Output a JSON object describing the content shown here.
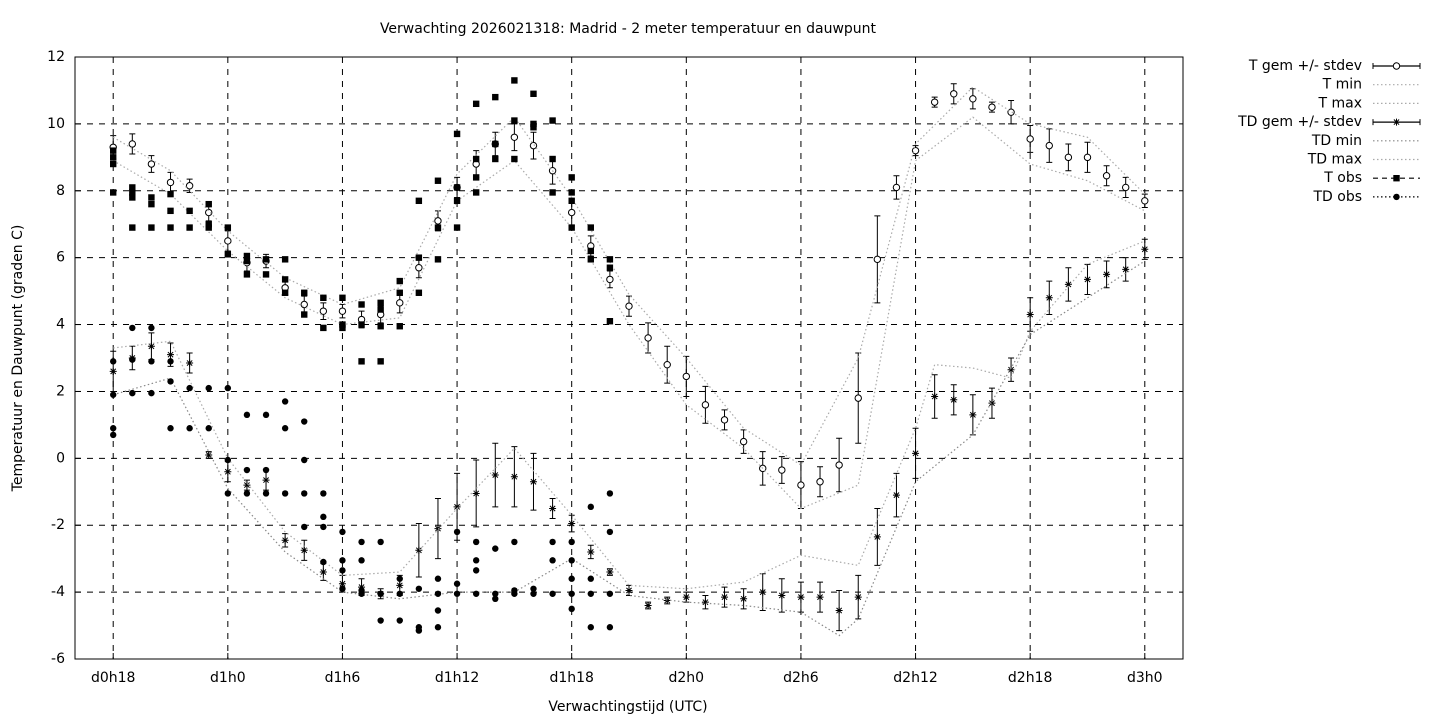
{
  "chart_data": {
    "type": "line",
    "title": "Verwachting 2026021318: Madrid - 2 meter temperatuur en dauwpunt",
    "xlabel": "Verwachtingstijd (UTC)",
    "ylabel": "Temperatuur en Dauwpunt (graden C)",
    "xlim": [
      16,
      74
    ],
    "xticks": [
      {
        "value": 18,
        "label": "d0h18"
      },
      {
        "value": 24,
        "label": "d1h0"
      },
      {
        "value": 30,
        "label": "d1h6"
      },
      {
        "value": 36,
        "label": "d1h12"
      },
      {
        "value": 42,
        "label": "d1h18"
      },
      {
        "value": 48,
        "label": "d2h0"
      },
      {
        "value": 54,
        "label": "d2h6"
      },
      {
        "value": 60,
        "label": "d2h12"
      },
      {
        "value": 66,
        "label": "d2h18"
      },
      {
        "value": 72,
        "label": "d3h0"
      }
    ],
    "ylim": [
      -6,
      12
    ],
    "yticks": [
      -6,
      -4,
      -2,
      0,
      2,
      4,
      6,
      8,
      10,
      12
    ],
    "grid": true,
    "legend": "outside-right",
    "series": [
      {
        "name": "T gem +/- stdev",
        "type": "errorbar",
        "marker": "open-circle",
        "line": "solid",
        "color": "#000000",
        "x": [
          18,
          19,
          20,
          21,
          22,
          23,
          24,
          25,
          26,
          27,
          28,
          29,
          30,
          31,
          32,
          33,
          34,
          35,
          36,
          37,
          38,
          39,
          40,
          41,
          42,
          43,
          44,
          45,
          46,
          47,
          48,
          49,
          50,
          51,
          52,
          53,
          54,
          55,
          56,
          57,
          58,
          59,
          60,
          61,
          62,
          63,
          64,
          65,
          66,
          67,
          68,
          69,
          70,
          71,
          72
        ],
        "values": [
          9.3,
          9.4,
          8.8,
          8.25,
          8.15,
          7.35,
          6.5,
          5.85,
          5.9,
          5.1,
          4.6,
          4.4,
          4.4,
          4.15,
          4.3,
          4.65,
          5.7,
          7.1,
          8.1,
          8.8,
          9.4,
          9.6,
          9.35,
          8.6,
          7.35,
          6.35,
          5.35,
          4.55,
          3.6,
          2.8,
          2.45,
          1.6,
          1.15,
          0.5,
          -0.3,
          -0.35,
          -0.8,
          -0.7,
          -0.2,
          1.8,
          5.95,
          8.1,
          9.2,
          10.65,
          10.9,
          10.75,
          10.5,
          10.35,
          9.55,
          9.35,
          9.0,
          9.0,
          8.45,
          8.1,
          7.7
        ],
        "errors": [
          0.35,
          0.3,
          0.25,
          0.3,
          0.2,
          0.25,
          0.3,
          0.25,
          0.2,
          0.2,
          0.25,
          0.25,
          0.2,
          0.25,
          0.25,
          0.3,
          0.3,
          0.3,
          0.3,
          0.4,
          0.35,
          0.4,
          0.4,
          0.4,
          0.4,
          0.3,
          0.25,
          0.3,
          0.45,
          0.55,
          0.6,
          0.55,
          0.3,
          0.35,
          0.5,
          0.4,
          0.7,
          0.45,
          0.8,
          1.35,
          1.3,
          0.35,
          0.15,
          0.15,
          0.3,
          0.3,
          0.15,
          0.35,
          0.4,
          0.5,
          0.4,
          0.45,
          0.3,
          0.3,
          0.2
        ]
      },
      {
        "name": "T min",
        "type": "line",
        "line": "dotted",
        "color": "#aaaaaa",
        "x": [
          18,
          21,
          24,
          27,
          30,
          33,
          36,
          39,
          42,
          45,
          48,
          51,
          54,
          57,
          60,
          63,
          66,
          69,
          72
        ],
        "values": [
          8.9,
          7.9,
          6.2,
          4.8,
          4.0,
          4.2,
          7.7,
          8.9,
          6.9,
          4.0,
          1.6,
          0.3,
          -1.5,
          -0.8,
          8.9,
          10.2,
          8.8,
          8.3,
          7.4
        ]
      },
      {
        "name": "T max",
        "type": "line",
        "line": "dotted",
        "color": "#aaaaaa",
        "x": [
          18,
          21,
          24,
          27,
          30,
          33,
          36,
          39,
          42,
          45,
          48,
          51,
          54,
          57,
          60,
          63,
          66,
          69,
          72
        ],
        "values": [
          9.6,
          8.6,
          6.8,
          5.4,
          4.6,
          5.1,
          8.5,
          10.2,
          7.8,
          4.9,
          3.0,
          0.9,
          -0.2,
          3.0,
          9.4,
          11.1,
          10.0,
          9.6,
          7.9
        ]
      },
      {
        "name": "TD gem +/- stdev",
        "type": "errorbar",
        "marker": "asterisk",
        "line": "solid",
        "color": "#000000",
        "x": [
          18,
          19,
          20,
          21,
          22,
          23,
          24,
          25,
          26,
          27,
          28,
          29,
          30,
          31,
          32,
          33,
          34,
          35,
          36,
          37,
          38,
          39,
          40,
          41,
          42,
          43,
          44,
          45,
          46,
          47,
          48,
          49,
          50,
          51,
          52,
          53,
          54,
          55,
          56,
          57,
          58,
          59,
          60,
          61,
          62,
          63,
          64,
          65,
          66,
          67,
          68,
          69,
          70,
          71,
          72
        ],
        "values": [
          2.6,
          3.0,
          3.35,
          3.1,
          2.85,
          0.1,
          -0.4,
          -0.8,
          -0.65,
          -2.45,
          -2.75,
          -3.4,
          -3.75,
          -3.85,
          -4.05,
          -3.8,
          -2.75,
          -2.1,
          -1.45,
          -1.05,
          -0.5,
          -0.55,
          -0.7,
          -1.5,
          -1.95,
          -2.8,
          -3.4,
          -3.95,
          -4.4,
          -4.25,
          -4.15,
          -4.3,
          -4.15,
          -4.2,
          -4.0,
          -4.1,
          -4.15,
          -4.15,
          -4.55,
          -4.15,
          -2.35,
          -1.1,
          0.15,
          1.85,
          1.75,
          1.3,
          1.65,
          2.65,
          4.3,
          4.8,
          5.2,
          5.35,
          5.5,
          5.65,
          6.25
        ],
        "errors": [
          0.6,
          0.35,
          0.4,
          0.35,
          0.3,
          0.1,
          0.3,
          0.15,
          0.3,
          0.2,
          0.3,
          0.25,
          0.25,
          0.25,
          0.15,
          0.3,
          0.8,
          0.9,
          1.0,
          1.0,
          0.95,
          0.9,
          0.85,
          0.3,
          0.25,
          0.2,
          0.1,
          0.15,
          0.1,
          0.1,
          0.15,
          0.2,
          0.3,
          0.3,
          0.55,
          0.5,
          0.45,
          0.45,
          0.6,
          0.65,
          0.85,
          0.65,
          0.75,
          0.65,
          0.45,
          0.6,
          0.45,
          0.35,
          0.5,
          0.5,
          0.5,
          0.45,
          0.4,
          0.35,
          0.3
        ]
      },
      {
        "name": "TD min",
        "type": "line",
        "line": "dotted",
        "color": "#888888",
        "x": [
          18,
          21,
          24,
          27,
          30,
          33,
          36,
          39,
          42,
          45,
          48,
          51,
          54,
          56,
          57,
          60,
          63,
          66,
          69,
          72
        ],
        "values": [
          1.9,
          2.4,
          -0.9,
          -2.8,
          -4.0,
          -4.2,
          -4.0,
          -4.0,
          -3.0,
          -4.1,
          -4.3,
          -4.4,
          -4.6,
          -5.3,
          -4.8,
          -0.7,
          0.7,
          3.7,
          4.8,
          5.9
        ]
      },
      {
        "name": "TD max",
        "type": "line",
        "line": "dotted",
        "color": "#aaaaaa",
        "x": [
          18,
          21,
          24,
          27,
          30,
          33,
          36,
          39,
          42,
          45,
          48,
          51,
          54,
          57,
          60,
          61,
          63,
          65,
          66,
          69,
          72
        ],
        "values": [
          3.3,
          3.5,
          0.0,
          -2.2,
          -3.5,
          -3.4,
          -1.5,
          0.3,
          -1.7,
          -3.8,
          -3.9,
          -3.7,
          -2.9,
          -3.2,
          0.9,
          2.8,
          2.7,
          2.4,
          3.8,
          5.8,
          6.5
        ]
      },
      {
        "name": "T obs",
        "type": "scatter",
        "marker": "square",
        "line": "dashed",
        "color": "#000000",
        "x": [
          18,
          18,
          18,
          18,
          19,
          19,
          19,
          19,
          20,
          20,
          20,
          21,
          21,
          21,
          22,
          22,
          23,
          23,
          23,
          24,
          24,
          25,
          25,
          25,
          26,
          26,
          27,
          27,
          27,
          28,
          28,
          29,
          29,
          30,
          30,
          30,
          31,
          31,
          31,
          32,
          32,
          32,
          32,
          33,
          33,
          33,
          34,
          34,
          34,
          35,
          35,
          35,
          36,
          36,
          36,
          36,
          37,
          37,
          37,
          37,
          38,
          38,
          38,
          39,
          39,
          39,
          40,
          40,
          40,
          41,
          41,
          41,
          42,
          42,
          42,
          42,
          43,
          43,
          43,
          44,
          44,
          44
        ],
        "values": [
          9.2,
          9.0,
          8.8,
          7.95,
          8.1,
          7.95,
          7.8,
          6.9,
          7.8,
          7.6,
          6.9,
          7.9,
          7.4,
          6.9,
          7.4,
          6.9,
          7.6,
          7.0,
          6.9,
          6.9,
          6.1,
          6.05,
          5.9,
          5.5,
          5.95,
          5.5,
          5.95,
          5.35,
          4.95,
          4.95,
          4.3,
          4.8,
          3.9,
          4.8,
          4.0,
          3.9,
          4.6,
          4.0,
          2.9,
          4.65,
          4.45,
          3.95,
          2.9,
          5.3,
          4.95,
          3.95,
          7.7,
          6.0,
          4.95,
          8.3,
          6.9,
          5.95,
          9.7,
          8.1,
          7.7,
          6.9,
          10.6,
          8.95,
          8.4,
          7.95,
          10.8,
          9.4,
          8.95,
          11.3,
          10.1,
          8.95,
          10.9,
          10.0,
          9.9,
          10.1,
          8.95,
          7.95,
          8.4,
          7.95,
          7.7,
          6.9,
          6.9,
          6.2,
          5.95,
          5.95,
          5.7,
          4.1
        ]
      },
      {
        "name": "TD obs",
        "type": "scatter",
        "marker": "circle",
        "line": "dotted",
        "color": "#000000",
        "x": [
          18,
          18,
          18,
          18,
          19,
          19,
          19,
          20,
          20,
          20,
          21,
          21,
          21,
          22,
          22,
          23,
          23,
          24,
          24,
          24,
          25,
          25,
          25,
          26,
          26,
          26,
          27,
          27,
          27,
          28,
          28,
          28,
          28,
          29,
          29,
          29,
          29,
          30,
          30,
          30,
          30,
          31,
          31,
          31,
          31,
          32,
          32,
          32,
          33,
          33,
          33,
          34,
          34,
          34,
          35,
          35,
          35,
          35,
          36,
          36,
          36,
          37,
          37,
          37,
          37,
          38,
          38,
          38,
          39,
          39,
          39,
          40,
          40,
          41,
          41,
          41,
          42,
          42,
          42,
          42,
          42,
          43,
          43,
          43,
          43,
          44,
          44,
          44,
          44
        ],
        "values": [
          2.9,
          1.9,
          0.9,
          0.7,
          3.9,
          2.95,
          1.95,
          3.9,
          2.9,
          1.95,
          2.9,
          2.3,
          0.9,
          2.1,
          0.9,
          2.1,
          0.9,
          2.1,
          -0.05,
          -1.05,
          1.3,
          -0.35,
          -1.05,
          1.3,
          -0.35,
          -1.05,
          1.7,
          0.9,
          -1.05,
          1.1,
          -0.05,
          -2.05,
          -1.05,
          -1.05,
          -1.75,
          -2.05,
          -3.1,
          -2.2,
          -3.05,
          -3.35,
          -3.9,
          -2.5,
          -3.05,
          -3.95,
          -4.05,
          -2.5,
          -4.05,
          -4.85,
          -3.6,
          -4.05,
          -4.85,
          -3.9,
          -5.05,
          -5.15,
          -3.6,
          -4.05,
          -4.55,
          -5.05,
          -2.2,
          -3.75,
          -4.05,
          -2.5,
          -3.05,
          -3.35,
          -4.05,
          -2.7,
          -4.05,
          -4.2,
          -2.5,
          -3.95,
          -4.05,
          -3.9,
          -4.05,
          -2.5,
          -3.05,
          -4.05,
          -2.5,
          -3.05,
          -3.6,
          -4.05,
          -4.5,
          -1.45,
          -3.6,
          -4.05,
          -5.05,
          -1.05,
          -2.2,
          -4.05,
          -5.05
        ]
      }
    ]
  }
}
